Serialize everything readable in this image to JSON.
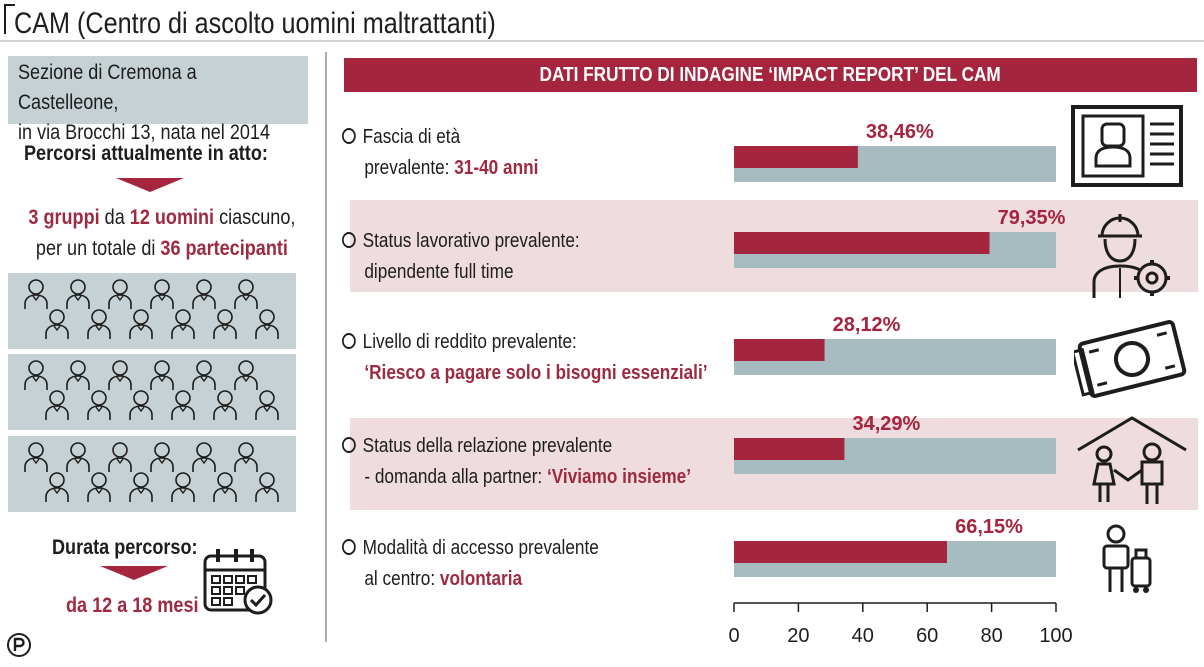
{
  "title": "CAM (Centro di ascolto uomini maltrattanti)",
  "left": {
    "intro_line1": "Sezione di Cremona a Castelleone,",
    "intro_line2": "in via Brocchi 13, nata nel 2014",
    "groups_heading": "Percorsi attualmente in atto:",
    "groups_desc": {
      "num_groups": "3 gruppi",
      "t1": " da ",
      "men": "12 uomini",
      "t2": " ciascuno,",
      "t3": "per un totale di ",
      "total": "36 partecipanti"
    },
    "duration_heading": "Durata percorso:",
    "duration_value": "da 12 a 18 mesi"
  },
  "panel_title": "DATI FRUTTO DI INDAGINE ‘IMPACT REPORT’ DEL CAM",
  "items": [
    {
      "line1": "Fascia di età",
      "line2_prefix": "prevalente: ",
      "line2_highlight": "31-40 anni",
      "icon": "id-card-icon"
    },
    {
      "line1": "Status lavorativo prevalente:",
      "line2_prefix": "dipendente full time",
      "line2_highlight": "",
      "icon": "worker-gear-icon"
    },
    {
      "line1": "Livello di reddito prevalente:",
      "line2_prefix": "",
      "line2_highlight": "‘Riesco a pagare solo i bisogni essenziali’",
      "icon": "banknote-icon"
    },
    {
      "line1": "Status della relazione prevalente",
      "line2_prefix": "- domanda alla partner: ",
      "line2_highlight": "‘Viviamo insieme’",
      "icon": "couple-house-icon"
    },
    {
      "line1": "Modalità di accesso prevalente",
      "line2_prefix": "al centro: ",
      "line2_highlight": "volontaria",
      "icon": "traveler-luggage-icon"
    }
  ],
  "colors": {
    "accent": "#a5243e",
    "bar_background": "#a7bcc1",
    "row_highlight": "#eedcdf",
    "group_box": "#c5d1d4",
    "text": "#1d1d1b"
  },
  "chart_data": {
    "type": "bar",
    "orientation": "horizontal",
    "values": [
      38.46,
      79.35,
      28.12,
      34.29,
      66.15
    ],
    "value_labels": [
      "38,46%",
      "79,35%",
      "28,12%",
      "34,29%",
      "66,15%"
    ],
    "xlim": [
      0,
      100
    ],
    "xticks": [
      0,
      20,
      40,
      60,
      80,
      100
    ],
    "grid": false
  }
}
